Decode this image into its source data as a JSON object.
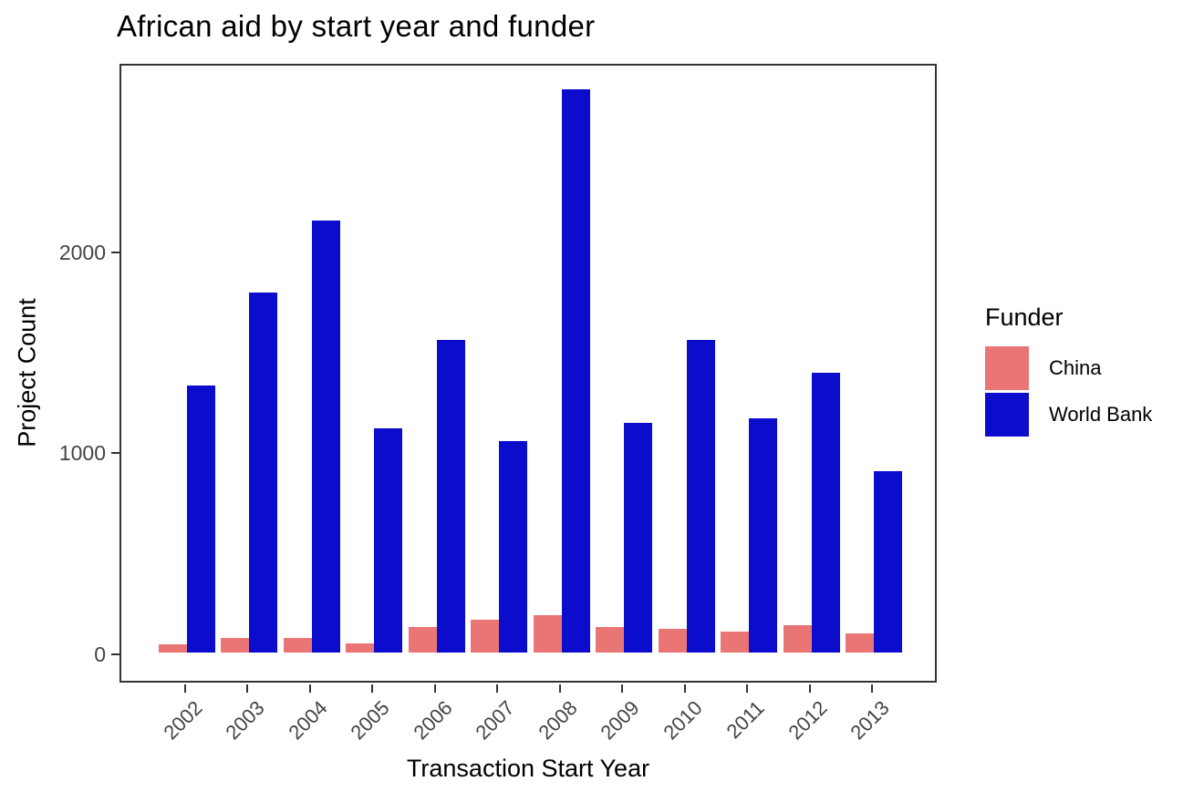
{
  "title": "African aid by start year and funder",
  "colors": {
    "china": "#E97575",
    "world_bank": "#0C0CCC",
    "tick_label": "#444444",
    "axis": "#333333"
  },
  "legend": {
    "title": "Funder",
    "entries": [
      {
        "label": "China",
        "color": "#E97575"
      },
      {
        "label": "World Bank",
        "color": "#0C0CCC"
      }
    ]
  },
  "chart_data": {
    "type": "bar",
    "title": "African aid by start year and funder",
    "xlabel": "Transaction Start Year",
    "ylabel": "Project Count",
    "categories": [
      "2002",
      "2003",
      "2004",
      "2005",
      "2006",
      "2007",
      "2008",
      "2009",
      "2010",
      "2011",
      "2012",
      "2013"
    ],
    "series": [
      {
        "name": "China",
        "color": "#E97575",
        "values": [
          40,
          72,
          72,
          42,
          125,
          160,
          185,
          125,
          118,
          104,
          135,
          93
        ]
      },
      {
        "name": "World Bank",
        "color": "#0C0CCC",
        "values": [
          1325,
          1790,
          2150,
          1115,
          1555,
          1050,
          2800,
          1140,
          1555,
          1165,
          1390,
          900
        ]
      }
    ],
    "yticks": [
      0,
      1000,
      2000
    ],
    "ylim": [
      -145,
      2940
    ],
    "bar_mode": "grouped",
    "grid": false,
    "legend_position": "right"
  }
}
